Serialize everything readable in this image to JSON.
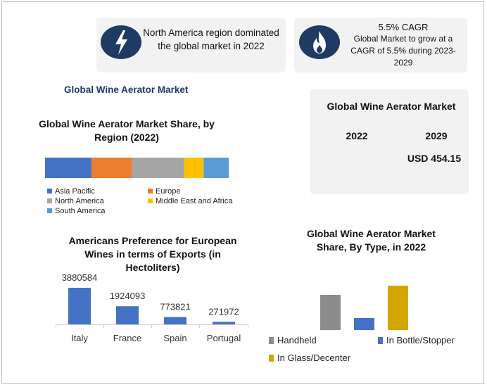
{
  "cards": {
    "region": {
      "text": "North America region dominated the global market in 2022"
    },
    "cagr": {
      "heading": "5.5% CAGR",
      "text": "Global Market to grow at a CAGR of 5.5% during 2023-2029"
    },
    "market": {
      "title": "Global Wine Aerator Market",
      "year1": "2022",
      "year2": "2029",
      "value": "USD 454.15"
    }
  },
  "main_title": "Global Wine Aerator Market",
  "colors": {
    "navy": "#1f3a63",
    "card_bg": "#f2f2f2"
  },
  "icons": {
    "region": "lightning-bolt-icon",
    "cagr": "flame-icon"
  },
  "chart_data": [
    {
      "type": "bar",
      "orientation": "horizontal-stacked",
      "title": "Global Wine Aerator Market Share, by Region (2022)",
      "categories": [
        "Asia Pacific",
        "Europe",
        "North America",
        "Middle East and Africa",
        "South America"
      ],
      "values": [
        24,
        21,
        27,
        10,
        13
      ],
      "colors": [
        "#4472c4",
        "#ed7d31",
        "#a5a5a5",
        "#ffc000",
        "#5b9bd5"
      ],
      "legend": "bottom"
    },
    {
      "type": "bar",
      "title": "Americans Preference for European Wines in terms of Exports (in Hectoliters)",
      "categories": [
        "Italy",
        "France",
        "Spain",
        "Portugal"
      ],
      "values": [
        3880584,
        1924093,
        773821,
        271972
      ],
      "labels": [
        "3880584",
        "1924093",
        "773821",
        "271972"
      ],
      "color": "#4472c4"
    },
    {
      "type": "bar",
      "title": "Global Wine Aerator Market Share, By Type, in 2022",
      "categories": [
        "Handheld",
        "In Bottle/Stopper",
        "In Glass/Decenter"
      ],
      "values": [
        50,
        17,
        63
      ],
      "colors": [
        "#8c8c8c",
        "#4472c4",
        "#d4a600"
      ],
      "legend": "bottom"
    }
  ]
}
